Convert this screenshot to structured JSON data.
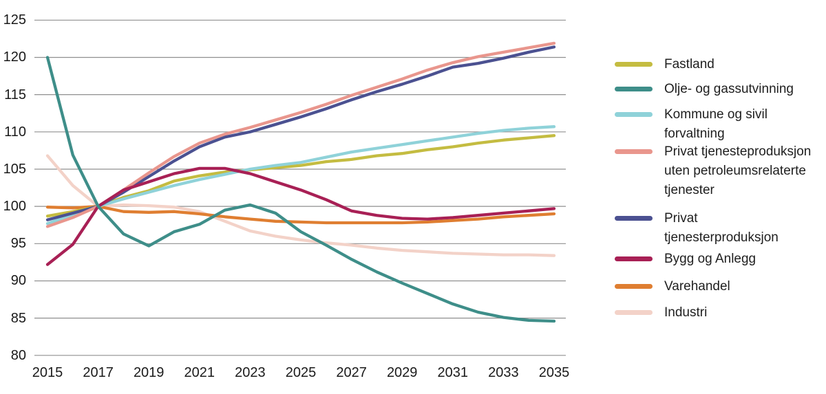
{
  "figure": {
    "background": "#ffffff",
    "gridline_color": "#8f8f8f",
    "text_color": "#1a1a1a"
  },
  "chart_data": {
    "type": "line",
    "title": "",
    "xlabel": "",
    "ylabel": "",
    "x": [
      2015,
      2016,
      2017,
      2018,
      2019,
      2020,
      2021,
      2022,
      2023,
      2024,
      2025,
      2026,
      2027,
      2028,
      2029,
      2030,
      2031,
      2032,
      2033,
      2034,
      2035
    ],
    "x_tick_labels": [
      "2015",
      "2017",
      "2019",
      "2021",
      "2023",
      "2025",
      "2027",
      "2029",
      "2031",
      "2033",
      "2035"
    ],
    "y_ticks": [
      125,
      120,
      115,
      110,
      105,
      100,
      95,
      90,
      85,
      80
    ],
    "ylim": [
      80,
      125
    ],
    "grid": "horizontal",
    "legend_position": "right",
    "series": [
      {
        "name": "Fastland",
        "color": "#c4bc41",
        "values": [
          98.7,
          99.3,
          100,
          101.2,
          102.1,
          103.4,
          104.1,
          104.6,
          104.9,
          105.2,
          105.5,
          106.0,
          106.3,
          106.8,
          107.1,
          107.6,
          108.0,
          108.5,
          108.9,
          109.2,
          109.5
        ]
      },
      {
        "name": "Olje- og gassutvinning",
        "color": "#3e8e89",
        "values": [
          120.0,
          106.9,
          100,
          96.3,
          94.7,
          96.6,
          97.6,
          99.5,
          100.2,
          99.1,
          96.6,
          94.8,
          92.9,
          91.2,
          89.7,
          88.3,
          86.9,
          85.8,
          85.1,
          84.7,
          84.6
        ]
      },
      {
        "name": "Kommune og sivil forvaltning",
        "color": "#8fd2d9",
        "values": [
          97.7,
          98.9,
          100,
          101.0,
          101.9,
          102.8,
          103.6,
          104.3,
          105.0,
          105.5,
          105.9,
          106.6,
          107.3,
          107.8,
          108.3,
          108.8,
          109.3,
          109.8,
          110.2,
          110.5,
          110.7
        ]
      },
      {
        "name": "Privat tjenesteproduksjon uten petroleumsrelaterte tjenester",
        "color": "#e9968d",
        "values": [
          97.3,
          98.5,
          100,
          102.2,
          104.5,
          106.7,
          108.5,
          109.7,
          110.6,
          111.6,
          112.6,
          113.7,
          114.9,
          116.0,
          117.1,
          118.3,
          119.3,
          120.1,
          120.7,
          121.3,
          121.9
        ]
      },
      {
        "name": "Privat tjenesterproduksjon",
        "color": "#4b5191",
        "values": [
          98.2,
          99.1,
          100,
          101.9,
          104.0,
          106.1,
          108.0,
          109.3,
          110.0,
          111.0,
          112.0,
          113.1,
          114.3,
          115.4,
          116.4,
          117.5,
          118.7,
          119.2,
          119.9,
          120.7,
          121.4
        ]
      },
      {
        "name": "Bygg og Anlegg",
        "color": "#a82055",
        "values": [
          92.2,
          94.9,
          100,
          102.2,
          103.3,
          104.4,
          105.1,
          105.1,
          104.4,
          103.3,
          102.2,
          100.9,
          99.4,
          98.8,
          98.4,
          98.3,
          98.5,
          98.8,
          99.1,
          99.4,
          99.7
        ]
      },
      {
        "name": "Varehandel",
        "color": "#df7e31",
        "values": [
          99.9,
          99.8,
          100,
          99.3,
          99.2,
          99.3,
          99.0,
          98.6,
          98.3,
          98.0,
          97.9,
          97.8,
          97.8,
          97.8,
          97.8,
          97.9,
          98.1,
          98.3,
          98.6,
          98.8,
          99.0
        ]
      },
      {
        "name": "Industri",
        "color": "#f3d2c8",
        "values": [
          106.8,
          102.8,
          100,
          100.2,
          100.1,
          99.9,
          99.3,
          98.0,
          96.7,
          96.0,
          95.5,
          95.1,
          94.8,
          94.4,
          94.1,
          93.9,
          93.7,
          93.6,
          93.5,
          93.5,
          93.4
        ]
      }
    ],
    "draw_order": [
      "Industri",
      "Varehandel",
      "Fastland",
      "Kommune og sivil forvaltning",
      "Privat tjenesterproduksjon",
      "Privat tjenesteproduksjon uten petroleumsrelaterte tjenester",
      "Bygg og Anlegg",
      "Olje- og gassutvinning"
    ]
  }
}
